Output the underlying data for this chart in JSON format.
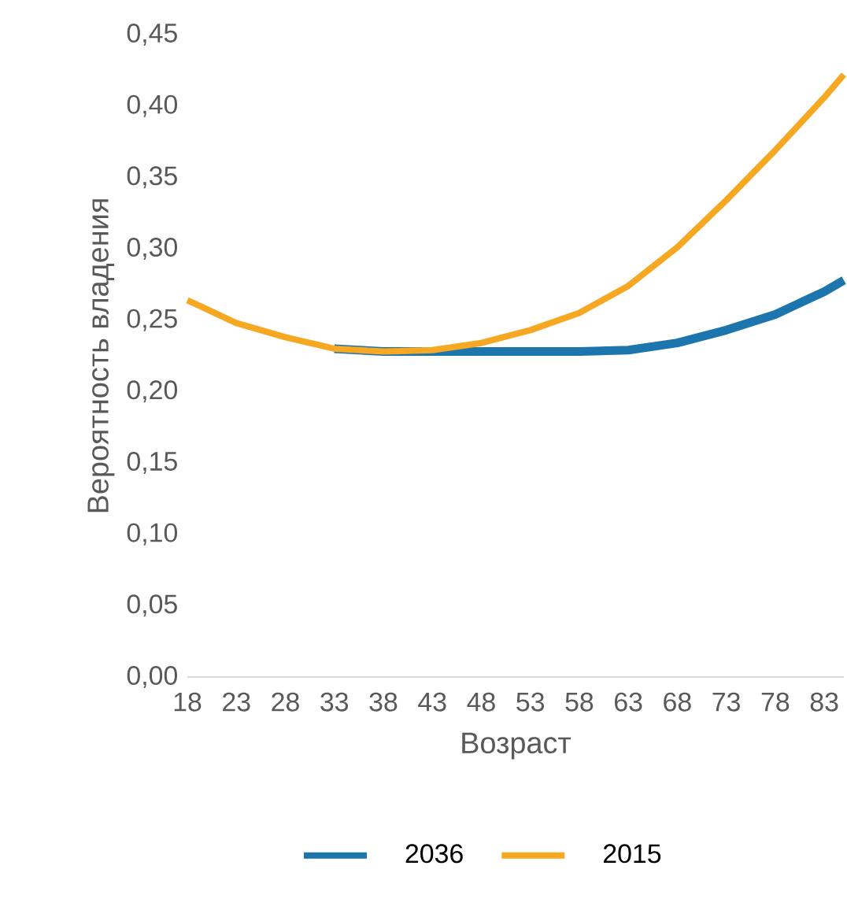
{
  "chart_data": {
    "type": "line",
    "xlabel": "Возраст",
    "ylabel": "Вероятность владения",
    "x": [
      18,
      23,
      28,
      33,
      38,
      43,
      48,
      53,
      58,
      63,
      68,
      73,
      78,
      83,
      85
    ],
    "series": [
      {
        "name": "2036",
        "color": "#1c75ad",
        "values": [
          null,
          null,
          null,
          0.23,
          0.228,
          0.228,
          0.228,
          0.228,
          0.228,
          0.229,
          0.234,
          0.243,
          0.254,
          0.27,
          0.278
        ]
      },
      {
        "name": "2015",
        "color": "#f7a823",
        "values": [
          0.264,
          0.248,
          0.238,
          0.23,
          0.228,
          0.229,
          0.234,
          0.243,
          0.255,
          0.274,
          0.301,
          0.334,
          0.369,
          0.406,
          0.422
        ]
      }
    ],
    "xlim": [
      18,
      85
    ],
    "ylim": [
      0,
      0.45
    ],
    "xticks": [
      18,
      23,
      28,
      33,
      38,
      43,
      48,
      53,
      58,
      63,
      68,
      73,
      78,
      83
    ],
    "yticks": [
      {
        "value": 0,
        "label": "0,00"
      },
      {
        "value": 0.05,
        "label": "0,05"
      },
      {
        "value": 0.1,
        "label": "0,10"
      },
      {
        "value": 0.15,
        "label": "0,15"
      },
      {
        "value": 0.2,
        "label": "0,20"
      },
      {
        "value": 0.25,
        "label": "0,25"
      },
      {
        "value": 0.3,
        "label": "0,30"
      },
      {
        "value": 0.35,
        "label": "0,35"
      },
      {
        "value": 0.4,
        "label": "0,40"
      },
      {
        "value": 0.45,
        "label": "0,45"
      }
    ],
    "grid": false,
    "legend": "bottom",
    "marker": "none",
    "line_style": "solid"
  }
}
